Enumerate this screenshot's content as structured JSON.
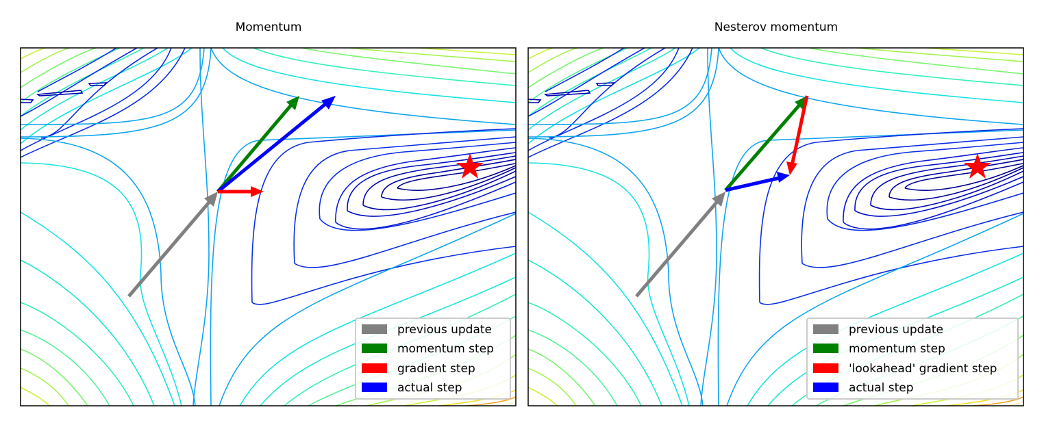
{
  "colors": {
    "previous": "#808080",
    "momentum": "#008000",
    "gradient": "#ff0000",
    "actual": "#0000ff",
    "star": "#ff0000",
    "contour_dark": "#000090",
    "contour_blue": "#0a2ee6",
    "contour_sky": "#0fa5ef",
    "contour_cyan": "#16e3e3",
    "contour_aqua": "#33f0b8",
    "contour_green": "#7af56e",
    "contour_lime": "#c8f23a",
    "contour_yellow": "#f0dc28",
    "contour_orange": "#f5a020"
  },
  "panels": [
    {
      "title": "Momentum",
      "legend": [
        {
          "label": "previous update",
          "color": "#808080"
        },
        {
          "label": "momentum step",
          "color": "#008000"
        },
        {
          "label": "gradient step",
          "color": "#ff0000"
        },
        {
          "label": "actual step",
          "color": "#0000ff"
        }
      ]
    },
    {
      "title": "Nesterov momentum",
      "legend": [
        {
          "label": "previous update",
          "color": "#808080"
        },
        {
          "label": "momentum step",
          "color": "#008000"
        },
        {
          "label": "'lookahead' gradient step",
          "color": "#ff0000"
        },
        {
          "label": "actual step",
          "color": "#0000ff"
        }
      ]
    }
  ]
}
